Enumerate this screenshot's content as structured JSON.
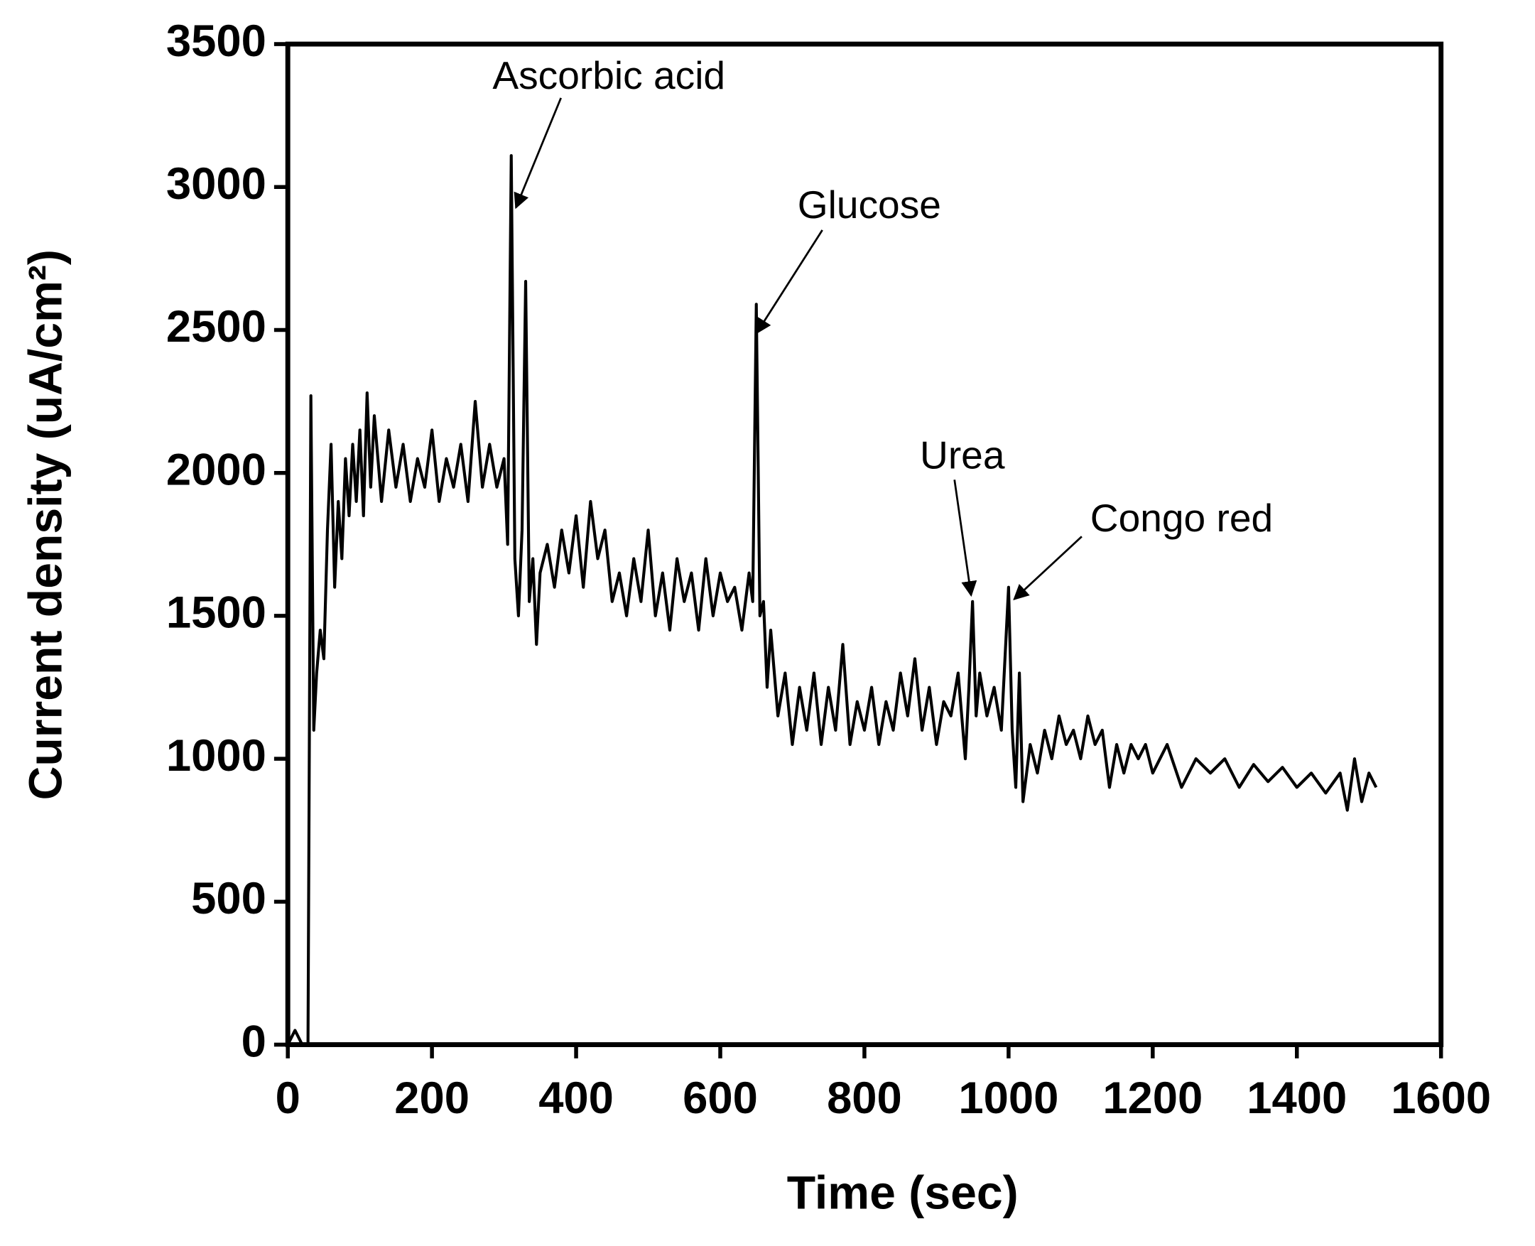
{
  "chart_data": {
    "type": "line",
    "xlabel": "Time (sec)",
    "ylabel": "Current density (uA/cm²)",
    "annotations": [
      "Ascorbic acid",
      "Glucose",
      "Urea",
      "Congo red"
    ],
    "xlim": [
      0,
      1600
    ],
    "xticks": [
      0,
      200,
      400,
      600,
      800,
      1000,
      1200,
      1400,
      1600
    ],
    "ylim": [
      0,
      3500
    ],
    "yticks": [
      0,
      500,
      1000,
      1500,
      2000,
      2500,
      3000,
      3500
    ],
    "x": [
      0,
      10,
      20,
      28,
      32,
      36,
      40,
      45,
      50,
      55,
      60,
      65,
      70,
      75,
      80,
      85,
      90,
      95,
      100,
      105,
      110,
      115,
      120,
      130,
      140,
      150,
      160,
      170,
      180,
      190,
      200,
      210,
      220,
      230,
      240,
      250,
      260,
      270,
      280,
      290,
      300,
      305,
      310,
      315,
      320,
      325,
      330,
      335,
      340,
      345,
      350,
      360,
      370,
      380,
      390,
      400,
      410,
      420,
      430,
      440,
      450,
      460,
      470,
      480,
      490,
      500,
      510,
      520,
      530,
      540,
      550,
      560,
      570,
      580,
      590,
      600,
      610,
      620,
      630,
      640,
      645,
      650,
      655,
      660,
      665,
      670,
      680,
      690,
      700,
      710,
      720,
      730,
      740,
      750,
      760,
      770,
      780,
      790,
      800,
      810,
      820,
      830,
      840,
      850,
      860,
      870,
      880,
      890,
      900,
      910,
      920,
      930,
      940,
      945,
      950,
      955,
      960,
      970,
      980,
      990,
      1000,
      1005,
      1010,
      1015,
      1020,
      1030,
      1040,
      1050,
      1060,
      1070,
      1080,
      1090,
      1100,
      1110,
      1120,
      1130,
      1140,
      1150,
      1160,
      1170,
      1180,
      1190,
      1200,
      1220,
      1240,
      1260,
      1280,
      1300,
      1320,
      1340,
      1360,
      1380,
      1400,
      1420,
      1440,
      1460,
      1470,
      1480,
      1490,
      1500,
      1510
    ],
    "series": [
      {
        "color": "#000000",
        "values": [
          0,
          50,
          0,
          0,
          2270,
          1100,
          1300,
          1450,
          1350,
          1800,
          2100,
          1600,
          1900,
          1700,
          2050,
          1850,
          2100,
          1900,
          2150,
          1850,
          2280,
          1950,
          2200,
          1900,
          2150,
          1950,
          2100,
          1900,
          2050,
          1950,
          2150,
          1900,
          2050,
          1950,
          2100,
          1900,
          2250,
          1950,
          2100,
          1950,
          2050,
          1750,
          3110,
          1700,
          1500,
          1800,
          2670,
          1550,
          1700,
          1400,
          1650,
          1750,
          1600,
          1800,
          1650,
          1850,
          1600,
          1900,
          1700,
          1800,
          1550,
          1650,
          1500,
          1700,
          1550,
          1800,
          1500,
          1650,
          1450,
          1700,
          1550,
          1650,
          1450,
          1700,
          1500,
          1650,
          1550,
          1600,
          1450,
          1650,
          1550,
          2590,
          1500,
          1550,
          1250,
          1450,
          1150,
          1300,
          1050,
          1250,
          1100,
          1300,
          1050,
          1250,
          1100,
          1400,
          1050,
          1200,
          1100,
          1250,
          1050,
          1200,
          1100,
          1300,
          1150,
          1350,
          1100,
          1250,
          1050,
          1200,
          1150,
          1300,
          1000,
          1250,
          1550,
          1150,
          1300,
          1150,
          1250,
          1100,
          1600,
          1100,
          900,
          1300,
          850,
          1050,
          950,
          1100,
          1000,
          1150,
          1050,
          1100,
          1000,
          1150,
          1050,
          1100,
          900,
          1050,
          950,
          1050,
          1000,
          1050,
          950,
          1050,
          900,
          1000,
          950,
          1000,
          900,
          980,
          920,
          970,
          900,
          950,
          880,
          950,
          820,
          1000,
          850,
          950,
          900
        ]
      }
    ]
  }
}
